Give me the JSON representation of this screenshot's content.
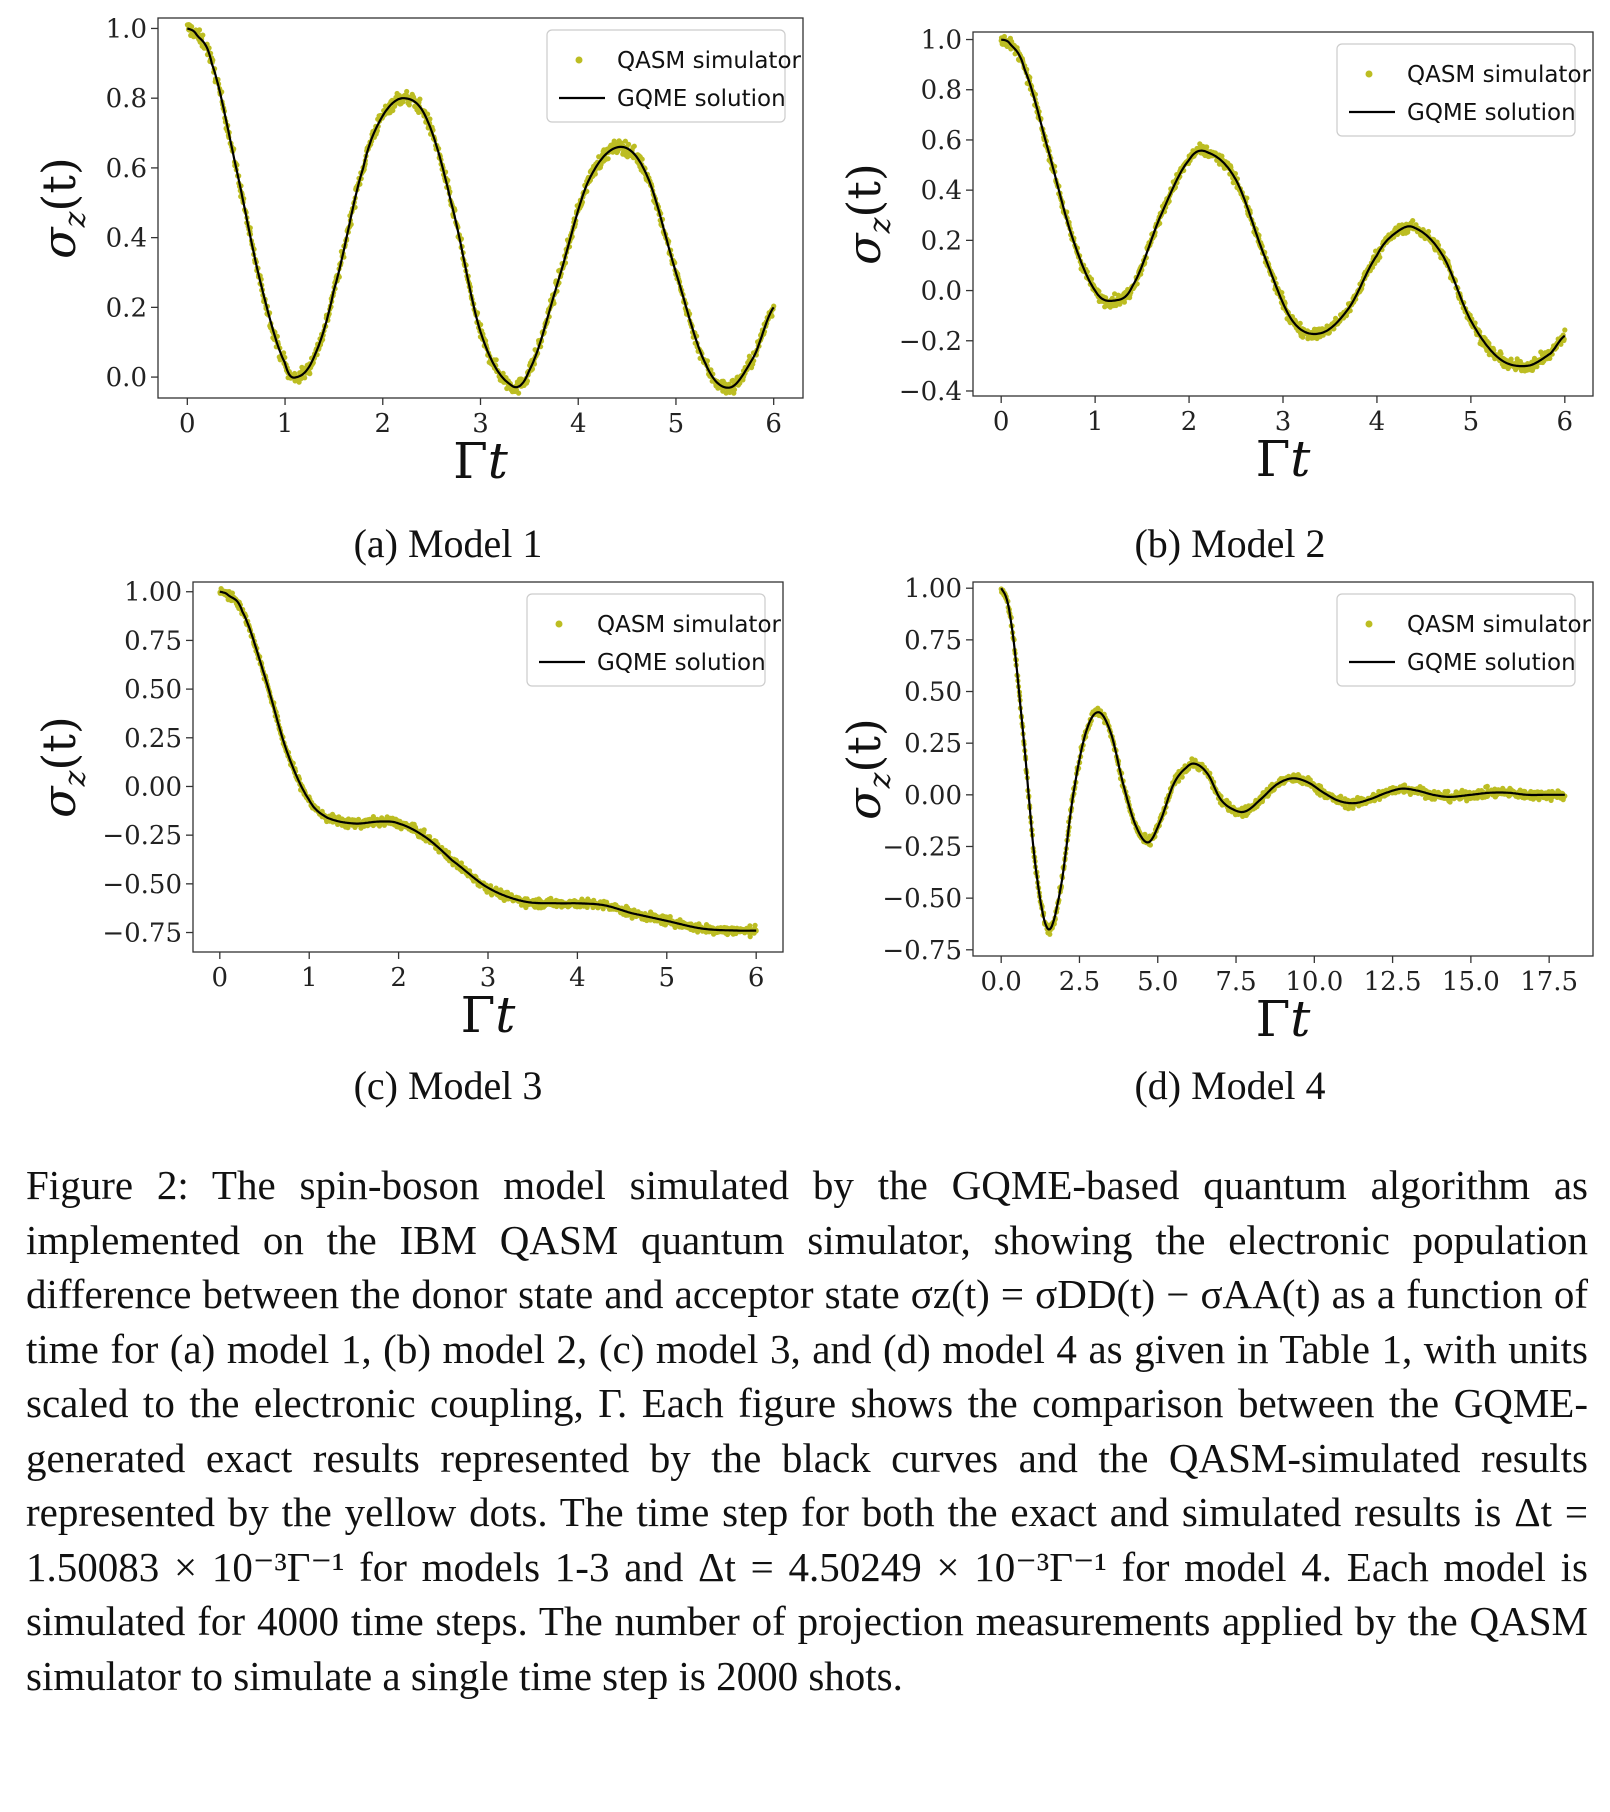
{
  "colors": {
    "qasm": "#bcbd22",
    "gqme": "#000000"
  },
  "legend": {
    "qasm_label": "QASM simulator",
    "gqme_label": "GQME solution"
  },
  "axis_labels": {
    "x_main": "Γ",
    "x_var": "t",
    "y_sigma": "σ",
    "y_sub": "z",
    "y_arg": "(t)"
  },
  "subcaptions": [
    "(a) Model 1",
    "(b) Model 2",
    "(c) Model 3",
    "(d) Model 4"
  ],
  "caption": "Figure 2:  The spin-boson model simulated by the GQME-based quantum algorithm as implemented on the IBM QASM quantum simulator, showing the electronic population difference between the donor state and acceptor state σz(t) = σDD(t) − σAA(t) as a function of time for (a) model 1, (b) model 2, (c) model 3, and (d) model 4 as given in Table 1, with units scaled to the electronic coupling, Γ.  Each figure shows the comparison between the GQME-generated exact results represented by the black curves and the QASM-simulated results represented by the yellow dots.  The time step for both the exact and simulated results is Δt = 1.50083 × 10⁻³Γ⁻¹ for models 1-3 and Δt = 4.50249 × 10⁻³Γ⁻¹ for model 4.  Each model is simulated for 4000 time steps.  The number of projection measurements applied by the QASM simulator to simulate a single time step is 2000 shots.",
  "chart_data": [
    {
      "type": "line",
      "subcaption": "(a) Model 1",
      "xlabel": "Γt",
      "ylabel": "σz(t)",
      "xlim": [
        -0.3,
        6.3
      ],
      "ylim": [
        -0.06,
        1.03
      ],
      "xticks": [
        "0",
        "1",
        "2",
        "3",
        "4",
        "5",
        "6"
      ],
      "xtick_values": [
        0,
        1,
        2,
        3,
        4,
        5,
        6
      ],
      "yticks": [
        "0.0",
        "0.2",
        "0.4",
        "0.6",
        "0.8",
        "1.0"
      ],
      "ytick_values": [
        0,
        0.2,
        0.4,
        0.6,
        0.8,
        1.0
      ],
      "legend": "upper right",
      "series": [
        {
          "name": "QASM simulator",
          "style": "scatter",
          "noise": 0.02,
          "x": [
            0,
            0.1,
            0.25,
            0.5,
            0.75,
            1.0,
            1.12,
            1.3,
            1.5,
            1.8,
            2.0,
            2.22,
            2.45,
            2.7,
            3.0,
            3.3,
            3.5,
            3.8,
            4.1,
            4.42,
            4.7,
            5.0,
            5.3,
            5.55,
            5.8,
            6.0
          ],
          "y": [
            1.0,
            0.98,
            0.9,
            0.6,
            0.27,
            0.04,
            0.0,
            0.06,
            0.25,
            0.6,
            0.75,
            0.8,
            0.74,
            0.5,
            0.13,
            -0.02,
            0.02,
            0.28,
            0.56,
            0.66,
            0.58,
            0.3,
            0.04,
            -0.03,
            0.06,
            0.2
          ]
        },
        {
          "name": "GQME solution",
          "style": "line",
          "x": [
            0,
            0.1,
            0.25,
            0.5,
            0.75,
            1.0,
            1.12,
            1.3,
            1.5,
            1.8,
            2.0,
            2.22,
            2.45,
            2.7,
            3.0,
            3.3,
            3.5,
            3.8,
            4.1,
            4.42,
            4.7,
            5.0,
            5.3,
            5.55,
            5.8,
            6.0
          ],
          "y": [
            1.0,
            0.98,
            0.9,
            0.6,
            0.27,
            0.04,
            0.0,
            0.06,
            0.25,
            0.6,
            0.75,
            0.8,
            0.74,
            0.5,
            0.13,
            -0.02,
            0.02,
            0.28,
            0.56,
            0.66,
            0.58,
            0.3,
            0.04,
            -0.03,
            0.06,
            0.2
          ]
        }
      ]
    },
    {
      "type": "line",
      "subcaption": "(b) Model 2",
      "xlabel": "Γt",
      "ylabel": "σz(t)",
      "xlim": [
        -0.3,
        6.3
      ],
      "ylim": [
        -0.42,
        1.03
      ],
      "xticks": [
        "0",
        "1",
        "2",
        "3",
        "4",
        "5",
        "6"
      ],
      "xtick_values": [
        0,
        1,
        2,
        3,
        4,
        5,
        6
      ],
      "yticks": [
        "−0.4",
        "−0.2",
        "0.0",
        "0.2",
        "0.4",
        "0.6",
        "0.8",
        "1.0"
      ],
      "ytick_values": [
        -0.4,
        -0.2,
        0,
        0.2,
        0.4,
        0.6,
        0.8,
        1.0
      ],
      "legend": "upper right",
      "series": [
        {
          "name": "QASM simulator",
          "style": "scatter",
          "noise": 0.022,
          "x": [
            0,
            0.1,
            0.25,
            0.5,
            0.75,
            1.0,
            1.2,
            1.4,
            1.7,
            2.0,
            2.2,
            2.5,
            2.8,
            3.1,
            3.4,
            3.7,
            4.0,
            4.2,
            4.4,
            4.7,
            5.0,
            5.3,
            5.6,
            5.85,
            6.0
          ],
          "y": [
            1.0,
            0.98,
            0.88,
            0.56,
            0.22,
            0.0,
            -0.04,
            0.02,
            0.3,
            0.52,
            0.55,
            0.44,
            0.14,
            -0.12,
            -0.17,
            -0.07,
            0.14,
            0.23,
            0.25,
            0.14,
            -0.12,
            -0.27,
            -0.3,
            -0.25,
            -0.18
          ]
        },
        {
          "name": "GQME solution",
          "style": "line",
          "x": [
            0,
            0.1,
            0.25,
            0.5,
            0.75,
            1.0,
            1.2,
            1.4,
            1.7,
            2.0,
            2.2,
            2.5,
            2.8,
            3.1,
            3.4,
            3.7,
            4.0,
            4.2,
            4.4,
            4.7,
            5.0,
            5.3,
            5.6,
            5.85,
            6.0
          ],
          "y": [
            1.0,
            0.98,
            0.88,
            0.56,
            0.22,
            0.0,
            -0.04,
            0.02,
            0.3,
            0.52,
            0.55,
            0.44,
            0.14,
            -0.12,
            -0.17,
            -0.07,
            0.14,
            0.23,
            0.25,
            0.14,
            -0.12,
            -0.27,
            -0.3,
            -0.25,
            -0.18
          ]
        }
      ]
    },
    {
      "type": "line",
      "subcaption": "(c) Model 3",
      "xlabel": "Γt",
      "ylabel": "σz(t)",
      "xlim": [
        -0.3,
        6.3
      ],
      "ylim": [
        -0.85,
        1.05
      ],
      "xticks": [
        "0",
        "1",
        "2",
        "3",
        "4",
        "5",
        "6"
      ],
      "xtick_values": [
        0,
        1,
        2,
        3,
        4,
        5,
        6
      ],
      "yticks": [
        "−0.75",
        "−0.50",
        "−0.25",
        "0.00",
        "0.25",
        "0.50",
        "0.75",
        "1.00"
      ],
      "ytick_values": [
        -0.75,
        -0.5,
        -0.25,
        0,
        0.25,
        0.5,
        0.75,
        1.0
      ],
      "legend": "upper right",
      "series": [
        {
          "name": "QASM simulator",
          "style": "scatter",
          "noise": 0.022,
          "x": [
            0,
            0.1,
            0.25,
            0.5,
            0.75,
            1.0,
            1.2,
            1.5,
            1.8,
            2.0,
            2.3,
            2.6,
            3.0,
            3.4,
            3.8,
            4.0,
            4.3,
            4.6,
            5.0,
            5.4,
            5.8,
            6.0
          ],
          "y": [
            1.0,
            0.98,
            0.9,
            0.57,
            0.18,
            -0.07,
            -0.16,
            -0.19,
            -0.18,
            -0.19,
            -0.26,
            -0.38,
            -0.52,
            -0.59,
            -0.6,
            -0.6,
            -0.61,
            -0.65,
            -0.69,
            -0.73,
            -0.74,
            -0.74
          ]
        },
        {
          "name": "GQME solution",
          "style": "line",
          "x": [
            0,
            0.1,
            0.25,
            0.5,
            0.75,
            1.0,
            1.2,
            1.5,
            1.8,
            2.0,
            2.3,
            2.6,
            3.0,
            3.4,
            3.8,
            4.0,
            4.3,
            4.6,
            5.0,
            5.4,
            5.8,
            6.0
          ],
          "y": [
            1.0,
            0.98,
            0.9,
            0.57,
            0.18,
            -0.07,
            -0.16,
            -0.19,
            -0.18,
            -0.19,
            -0.26,
            -0.38,
            -0.52,
            -0.59,
            -0.6,
            -0.6,
            -0.61,
            -0.65,
            -0.69,
            -0.73,
            -0.74,
            -0.74
          ]
        }
      ]
    },
    {
      "type": "line",
      "subcaption": "(d) Model 4",
      "xlabel": "Γt",
      "ylabel": "σz(t)",
      "xlim": [
        -0.9,
        18.9
      ],
      "ylim": [
        -0.78,
        1.03
      ],
      "xticks": [
        "0.0",
        "2.5",
        "5.0",
        "7.5",
        "10.0",
        "12.5",
        "15.0",
        "17.5"
      ],
      "xtick_values": [
        0,
        2.5,
        5,
        7.5,
        10,
        12.5,
        15,
        17.5
      ],
      "yticks": [
        "−0.75",
        "−0.50",
        "−0.25",
        "0.00",
        "0.25",
        "0.50",
        "0.75",
        "1.00"
      ],
      "ytick_values": [
        -0.75,
        -0.5,
        -0.25,
        0,
        0.25,
        0.5,
        0.75,
        1.0
      ],
      "legend": "upper right",
      "series": [
        {
          "name": "QASM simulator",
          "style": "scatter",
          "noise": 0.022,
          "x": [
            0,
            0.3,
            0.7,
            1.1,
            1.5,
            1.9,
            2.3,
            2.7,
            3.1,
            3.5,
            3.9,
            4.3,
            4.7,
            5.1,
            5.5,
            5.9,
            6.2,
            6.6,
            7.0,
            7.4,
            7.8,
            8.3,
            8.8,
            9.3,
            9.8,
            10.3,
            10.8,
            11.3,
            11.8,
            12.3,
            12.8,
            13.3,
            13.8,
            14.3,
            15.0,
            15.6,
            16.2,
            16.8,
            17.4,
            18.0
          ],
          "y": [
            1.0,
            0.85,
            0.3,
            -0.35,
            -0.65,
            -0.45,
            0.0,
            0.3,
            0.4,
            0.3,
            0.05,
            -0.15,
            -0.23,
            -0.12,
            0.05,
            0.13,
            0.15,
            0.1,
            -0.02,
            -0.07,
            -0.08,
            -0.02,
            0.05,
            0.08,
            0.06,
            0.01,
            -0.03,
            -0.04,
            -0.02,
            0.01,
            0.03,
            0.02,
            0.0,
            -0.01,
            0.0,
            0.01,
            0.01,
            0.0,
            0.0,
            0.0
          ]
        },
        {
          "name": "GQME solution",
          "style": "line",
          "x": [
            0,
            0.3,
            0.7,
            1.1,
            1.5,
            1.9,
            2.3,
            2.7,
            3.1,
            3.5,
            3.9,
            4.3,
            4.7,
            5.1,
            5.5,
            5.9,
            6.2,
            6.6,
            7.0,
            7.4,
            7.8,
            8.3,
            8.8,
            9.3,
            9.8,
            10.3,
            10.8,
            11.3,
            11.8,
            12.3,
            12.8,
            13.3,
            13.8,
            14.3,
            15.0,
            15.6,
            16.2,
            16.8,
            17.4,
            18.0
          ],
          "y": [
            1.0,
            0.85,
            0.3,
            -0.35,
            -0.65,
            -0.45,
            0.0,
            0.3,
            0.4,
            0.3,
            0.05,
            -0.15,
            -0.23,
            -0.12,
            0.05,
            0.13,
            0.15,
            0.1,
            -0.02,
            -0.07,
            -0.08,
            -0.02,
            0.05,
            0.08,
            0.06,
            0.01,
            -0.03,
            -0.04,
            -0.02,
            0.01,
            0.03,
            0.02,
            0.0,
            -0.01,
            0.0,
            0.01,
            0.01,
            0.0,
            0.0,
            0.0
          ]
        }
      ]
    }
  ]
}
